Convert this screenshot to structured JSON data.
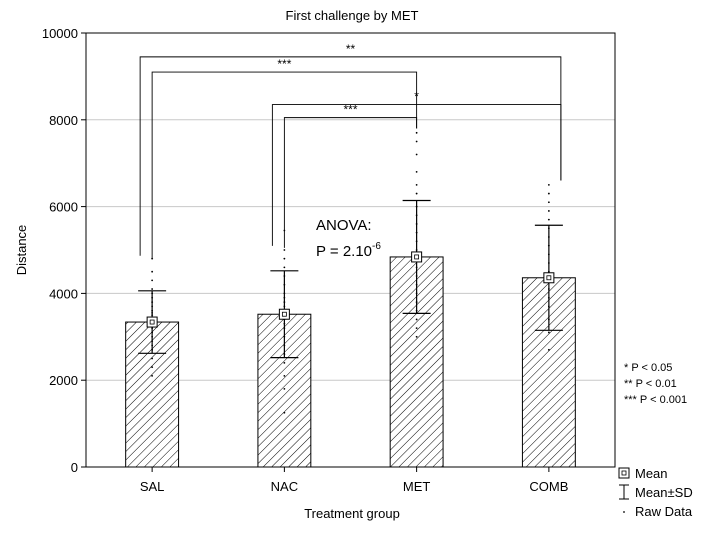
{
  "chart_data": {
    "type": "bar",
    "title": "First challenge by MET",
    "xlabel": "Treatment group",
    "ylabel": "Distance",
    "ylim": [
      0,
      10000
    ],
    "yticks": [
      0,
      2000,
      4000,
      6000,
      8000,
      10000
    ],
    "grid": true,
    "categories": [
      "SAL",
      "NAC",
      "MET",
      "COMB"
    ],
    "mean": [
      3340,
      3520,
      4840,
      4360
    ],
    "sd": [
      720,
      1000,
      1300,
      1210
    ],
    "raw_data": [
      [
        2100,
        2300,
        2500,
        2700,
        2800,
        2900,
        3000,
        3100,
        3200,
        3250,
        3300,
        3400,
        3500,
        3550,
        3600,
        3700,
        3800,
        3900,
        4000,
        4100,
        4300,
        4500,
        4800
      ],
      [
        1250,
        1800,
        2100,
        2400,
        2600,
        2800,
        3000,
        3200,
        3300,
        3400,
        3500,
        3600,
        3700,
        3800,
        3900,
        4000,
        4200,
        4400,
        4600,
        4800,
        5000,
        5450
      ],
      [
        3000,
        3200,
        3400,
        3600,
        3800,
        4000,
        4200,
        4400,
        4600,
        4800,
        5000,
        5200,
        5400,
        5600,
        5800,
        6000,
        6300,
        6500,
        6800,
        7200,
        7500,
        7700
      ],
      [
        2700,
        3100,
        3400,
        3700,
        3900,
        4100,
        4300,
        4500,
        4700,
        4900,
        5100,
        5300,
        5500,
        5700,
        5900,
        6100,
        6300,
        6500
      ]
    ],
    "significance": [
      {
        "from": "SAL",
        "to": "COMB",
        "label": "**",
        "level": 9450
      },
      {
        "from": "SAL",
        "to": "MET",
        "label": "***",
        "level": 9100
      },
      {
        "from": "NAC",
        "to": "COMB",
        "label": "*",
        "level": 8350
      },
      {
        "from": "NAC",
        "to": "MET",
        "label": "***",
        "level": 8050
      }
    ],
    "annotation": {
      "line1": "ANOVA:",
      "line2_prefix": "P = 2.10",
      "line2_sup": "-6"
    },
    "legend": {
      "position": "bottom-right-outside",
      "entries": [
        "Mean",
        "Mean±SD",
        "Raw Data"
      ]
    },
    "significance_key": [
      "*  P < 0.05",
      "** P < 0.01",
      "*** P < 0.001"
    ],
    "colors": {
      "bar_fill": "#ffffff",
      "hatch": "#000000",
      "grid": "#c8c8c8",
      "axis": "#000000"
    }
  }
}
